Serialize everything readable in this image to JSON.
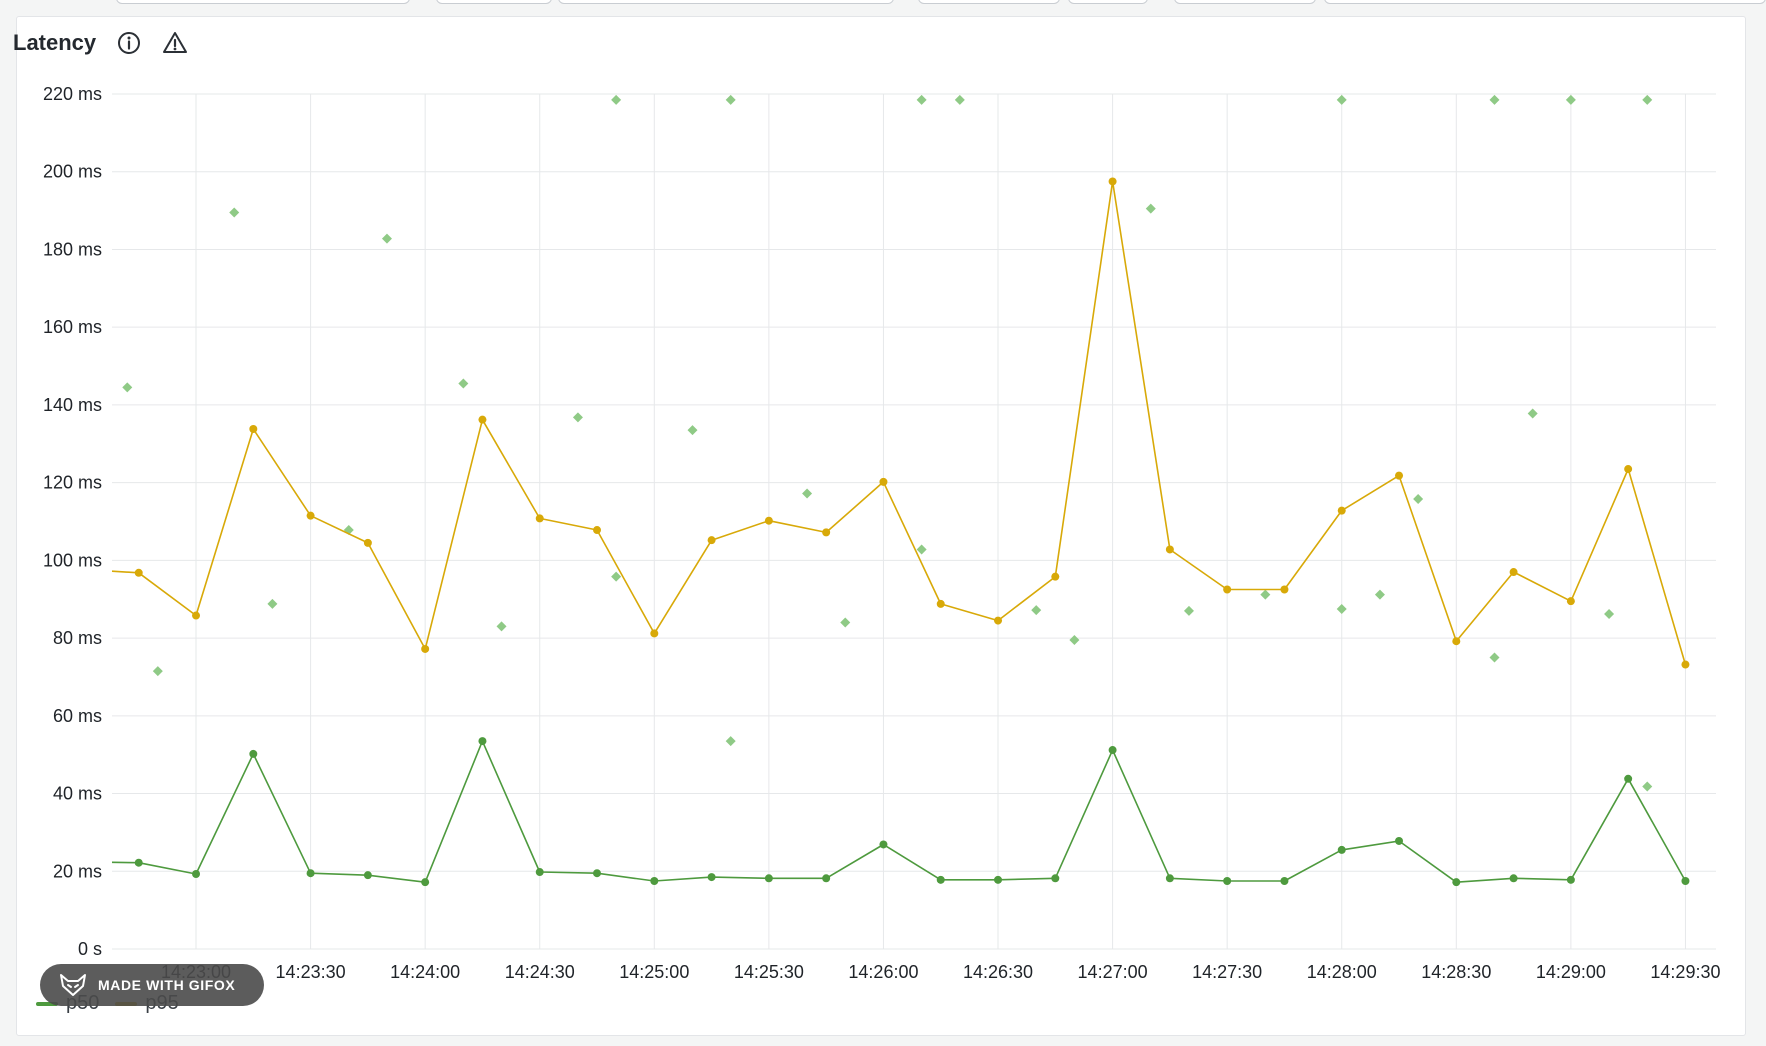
{
  "panel": {
    "title": "Latency",
    "info_icon": "info-circle-icon",
    "warning_icon": "warning-triangle-icon"
  },
  "colors": {
    "p50": "#4e9a3e",
    "p95": "#d8a908",
    "scatter": "#8fca86",
    "grid": "#e6e8ea"
  },
  "watermark": {
    "text": "MADE WITH GIFOX",
    "icon": "fox-logo-icon"
  },
  "chart_data": {
    "type": "line",
    "title": "Latency",
    "xlabel": "",
    "ylabel": "",
    "grid": true,
    "legend_position": "bottom-left",
    "ylim": [
      0,
      220
    ],
    "y_ticks": [
      {
        "value": 0,
        "label": "0 s"
      },
      {
        "value": 20,
        "label": "20 ms"
      },
      {
        "value": 40,
        "label": "40 ms"
      },
      {
        "value": 60,
        "label": "60 ms"
      },
      {
        "value": 80,
        "label": "80 ms"
      },
      {
        "value": 100,
        "label": "100 ms"
      },
      {
        "value": 120,
        "label": "120 ms"
      },
      {
        "value": 140,
        "label": "140 ms"
      },
      {
        "value": 160,
        "label": "160 ms"
      },
      {
        "value": 180,
        "label": "180 ms"
      },
      {
        "value": 200,
        "label": "200 ms"
      },
      {
        "value": 220,
        "label": "220 ms"
      }
    ],
    "xlim": [
      "14:22:38",
      "14:29:38"
    ],
    "x_ticks": [
      "14:23:00",
      "14:23:30",
      "14:24:00",
      "14:24:30",
      "14:25:00",
      "14:25:30",
      "14:26:00",
      "14:26:30",
      "14:27:00",
      "14:27:30",
      "14:28:00",
      "14:28:30",
      "14:29:00",
      "14:29:30"
    ],
    "x": [
      "14:22:38",
      "14:22:45",
      "14:23:00",
      "14:23:15",
      "14:23:30",
      "14:23:45",
      "14:24:00",
      "14:24:15",
      "14:24:30",
      "14:24:45",
      "14:25:00",
      "14:25:15",
      "14:25:30",
      "14:25:45",
      "14:26:00",
      "14:26:15",
      "14:26:30",
      "14:26:45",
      "14:27:00",
      "14:27:15",
      "14:27:30",
      "14:27:45",
      "14:28:00",
      "14:28:15",
      "14:28:30",
      "14:28:45",
      "14:29:00",
      "14:29:15",
      "14:29:30"
    ],
    "series": [
      {
        "name": "p50",
        "values": [
          22.3,
          22.2,
          19.3,
          50.2,
          19.5,
          19.0,
          17.2,
          53.5,
          19.8,
          19.5,
          17.5,
          18.5,
          18.2,
          18.2,
          26.9,
          17.8,
          17.8,
          18.2,
          51.2,
          18.2,
          17.5,
          17.5,
          25.5,
          27.8,
          17.2,
          18.2,
          17.8,
          43.8,
          17.5
        ]
      },
      {
        "name": "p95",
        "values": [
          97.2,
          96.8,
          85.8,
          133.8,
          111.5,
          104.5,
          77.2,
          136.2,
          110.8,
          107.8,
          81.2,
          105.2,
          110.2,
          107.2,
          120.2,
          88.8,
          84.5,
          95.8,
          197.5,
          102.8,
          92.5,
          92.5,
          112.8,
          121.8,
          79.2,
          97.0,
          89.5,
          123.5,
          73.2
        ]
      }
    ],
    "scatter": {
      "x": [
        "14:22:42",
        "14:22:50",
        "14:23:10",
        "14:23:20",
        "14:23:40",
        "14:23:50",
        "14:24:10",
        "14:24:20",
        "14:24:40",
        "14:24:50",
        "14:24:50",
        "14:25:10",
        "14:25:20",
        "14:25:20",
        "14:25:40",
        "14:25:50",
        "14:26:10",
        "14:26:10",
        "14:26:20",
        "14:26:40",
        "14:26:50",
        "14:27:10",
        "14:27:20",
        "14:27:40",
        "14:28:00",
        "14:28:00",
        "14:28:10",
        "14:28:20",
        "14:28:40",
        "14:28:40",
        "14:28:50",
        "14:29:00",
        "14:29:10",
        "14:29:20",
        "14:29:20"
      ],
      "values": [
        144.5,
        71.5,
        189.5,
        88.8,
        107.8,
        182.8,
        145.5,
        83.0,
        136.8,
        218.5,
        95.8,
        133.5,
        218.5,
        53.5,
        117.2,
        84.0,
        218.5,
        102.8,
        218.5,
        87.2,
        79.5,
        190.5,
        87.0,
        91.2,
        218.5,
        87.5,
        91.2,
        115.8,
        218.5,
        75.0,
        137.8,
        218.5,
        86.2,
        218.5,
        41.8
      ]
    }
  },
  "legend": [
    {
      "label": "p50",
      "color": "#4e9a3e"
    },
    {
      "label": "p95",
      "color": "#d8a908"
    }
  ]
}
